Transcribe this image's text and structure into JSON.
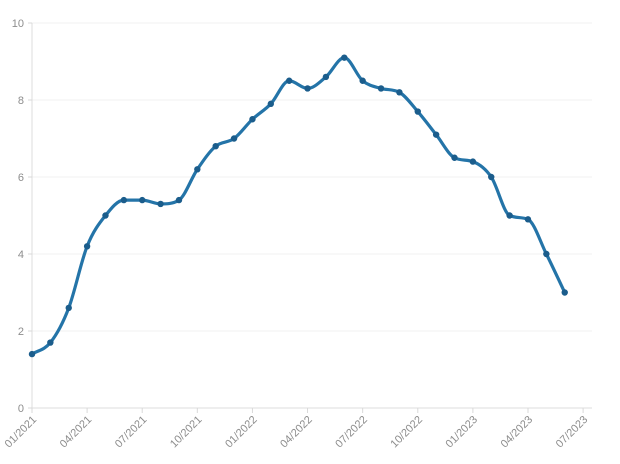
{
  "chart_data": {
    "type": "line",
    "title": "",
    "xlabel": "",
    "ylabel": "",
    "legend": "none",
    "grid": "horizontal",
    "smoothing": "monotone",
    "markers": true,
    "x": [
      "01/2021",
      "02/2021",
      "03/2021",
      "04/2021",
      "05/2021",
      "06/2021",
      "07/2021",
      "08/2021",
      "09/2021",
      "10/2021",
      "11/2021",
      "12/2021",
      "01/2022",
      "02/2022",
      "03/2022",
      "04/2022",
      "05/2022",
      "06/2022",
      "07/2022",
      "08/2022",
      "09/2022",
      "10/2022",
      "11/2022",
      "12/2022",
      "01/2023",
      "02/2023",
      "03/2023",
      "04/2023",
      "05/2023",
      "06/2023"
    ],
    "values": [
      1.4,
      1.7,
      2.6,
      4.2,
      5.0,
      5.4,
      5.4,
      5.3,
      5.4,
      6.2,
      6.8,
      7.0,
      7.5,
      7.9,
      8.5,
      8.3,
      8.6,
      9.1,
      8.5,
      8.3,
      8.2,
      7.7,
      7.1,
      6.5,
      6.4,
      6.0,
      5.0,
      4.9,
      4.0,
      3.0
    ],
    "x_tick_labels": [
      "01/2021",
      "04/2021",
      "07/2021",
      "10/2021",
      "01/2022",
      "04/2022",
      "07/2022",
      "10/2022",
      "01/2023",
      "04/2023",
      "07/2023"
    ],
    "x_tick_every_months": 3,
    "y_ticks": [
      0,
      2,
      4,
      6,
      8,
      10
    ],
    "ylim": [
      0,
      10
    ],
    "colors": {
      "line": "#2474a8",
      "marker": "#1b5d8c",
      "grid": "#f0f0f0",
      "axis": "#dcdcdc",
      "tick": "#d9d9d9",
      "label": "#8d8d8d",
      "background": "#ffffff"
    }
  }
}
